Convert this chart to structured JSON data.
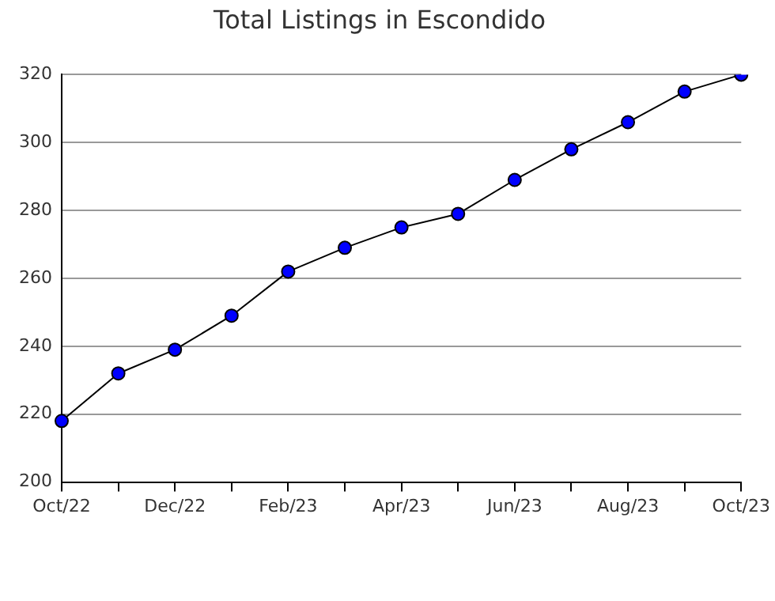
{
  "chart_data": {
    "type": "line",
    "title": "Total Listings in Escondido",
    "categories": [
      "Oct/22",
      null,
      "Dec/22",
      null,
      "Feb/23",
      null,
      "Apr/23",
      null,
      "Jun/23",
      null,
      "Aug/23",
      null,
      "Oct/23"
    ],
    "series": [
      {
        "color": "#0000ff",
        "values": [
          218,
          232,
          239,
          249,
          262,
          269,
          275,
          279,
          289,
          298,
          306,
          315,
          320
        ]
      }
    ],
    "ylim": [
      200,
      320
    ],
    "yticks": [
      200,
      220,
      240,
      260,
      280,
      300,
      320
    ],
    "grid": "y",
    "legend": false,
    "marker": "circle",
    "line_style": "solid"
  }
}
